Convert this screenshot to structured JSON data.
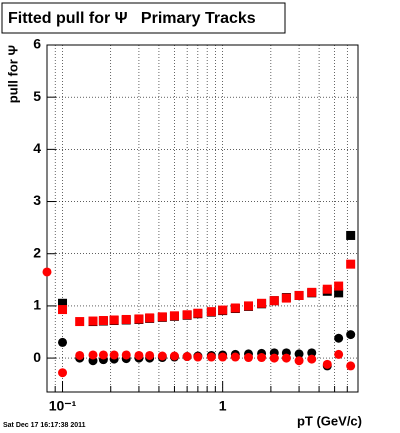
{
  "chart_data": {
    "type": "scatter",
    "title": "Fitted pull for Ψ   Primary Tracks",
    "xlabel": "pT (GeV/c)",
    "ylabel": "pull for Ψ",
    "footer": "Sat Dec 17 16:17:38 2011",
    "log_x": true,
    "grid": true,
    "xlim": [
      0.08,
      7
    ],
    "ylim": [
      -0.65,
      6
    ],
    "xticks": [
      {
        "value": 0.1,
        "label": "10⁻¹"
      },
      1
    ],
    "xminorticks": [
      0.08,
      0.09,
      0.2,
      0.3,
      0.4,
      0.5,
      0.6,
      0.7,
      0.8,
      0.9,
      2,
      3,
      4,
      5,
      6
    ],
    "yticks": [
      0,
      1,
      2,
      3,
      4,
      5,
      6
    ],
    "x": [
      0.08,
      0.1,
      0.128,
      0.155,
      0.18,
      0.21,
      0.25,
      0.3,
      0.35,
      0.42,
      0.5,
      0.6,
      0.7,
      0.85,
      1.0,
      1.2,
      1.45,
      1.75,
      2.1,
      2.5,
      3.0,
      3.6,
      4.5,
      5.3,
      6.3
    ],
    "series": [
      {
        "marker": "square",
        "color": "#000000",
        "values": [
          null,
          1.05,
          null,
          0.7,
          0.71,
          0.72,
          0.73,
          0.74,
          0.76,
          0.78,
          0.8,
          0.82,
          0.85,
          0.88,
          0.91,
          0.95,
          0.99,
          1.04,
          1.1,
          1.16,
          1.2,
          1.25,
          1.28,
          1.25,
          2.35
        ]
      },
      {
        "marker": "circle",
        "color": "#000000",
        "values": [
          null,
          0.3,
          0.0,
          -0.05,
          -0.03,
          -0.02,
          -0.01,
          0.0,
          0.0,
          0.01,
          0.02,
          0.03,
          0.04,
          0.05,
          0.06,
          0.07,
          0.08,
          0.09,
          0.1,
          0.1,
          0.08,
          0.1,
          -0.15,
          0.38,
          0.45
        ]
      },
      {
        "marker": "square",
        "color": "#ff0000",
        "values": [
          null,
          0.93,
          0.7,
          0.71,
          0.72,
          0.73,
          0.74,
          0.75,
          0.77,
          0.79,
          0.81,
          0.83,
          0.86,
          0.89,
          0.92,
          0.96,
          1.0,
          1.05,
          1.1,
          1.15,
          1.2,
          1.26,
          1.32,
          1.38,
          1.8
        ]
      },
      {
        "marker": "circle",
        "color": "#ff0000",
        "values": [
          1.65,
          -0.28,
          0.05,
          0.06,
          0.06,
          0.06,
          0.06,
          0.05,
          0.05,
          0.04,
          0.04,
          0.03,
          0.02,
          0.02,
          0.02,
          0.02,
          0.01,
          0.01,
          0.0,
          0.0,
          -0.05,
          -0.02,
          -0.12,
          0.07,
          -0.15
        ]
      }
    ]
  }
}
